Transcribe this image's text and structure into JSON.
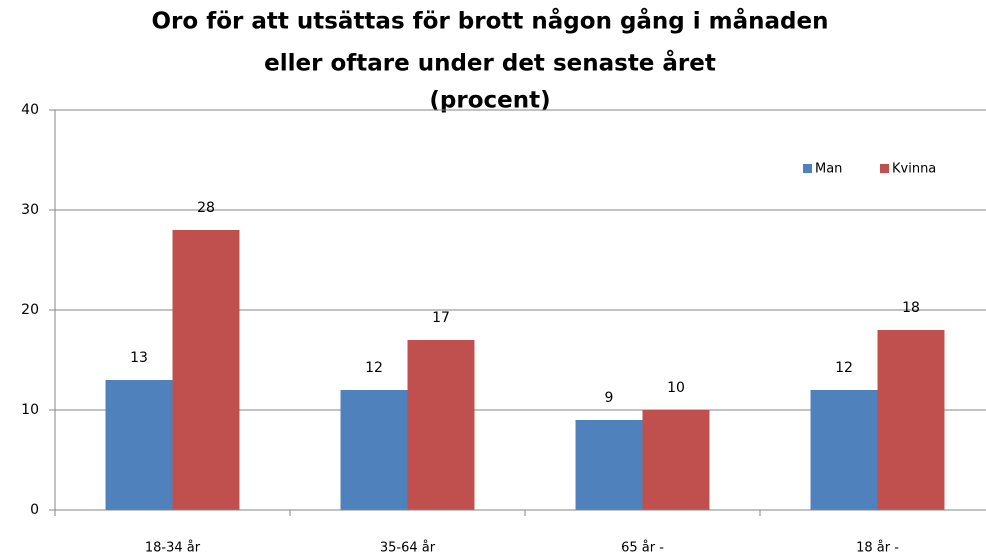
{
  "chart_data": {
    "type": "bar",
    "title": [
      "Oro för att utsättas för brott någon gång i månaden",
      "eller oftare under det senaste året",
      "(procent)"
    ],
    "categories": [
      "18-34 år",
      "35-64 år",
      "65 år -",
      "18 år -"
    ],
    "series": [
      {
        "name": "Man",
        "color": "#4f81bd",
        "values": [
          13,
          12,
          9,
          12
        ]
      },
      {
        "name": "Kvinna",
        "color": "#c0504d",
        "values": [
          28,
          17,
          10,
          18
        ]
      }
    ],
    "ylim": [
      0,
      40
    ],
    "yticks": [
      0,
      10,
      20,
      30,
      40
    ],
    "grid": true,
    "legend": "top-right"
  }
}
